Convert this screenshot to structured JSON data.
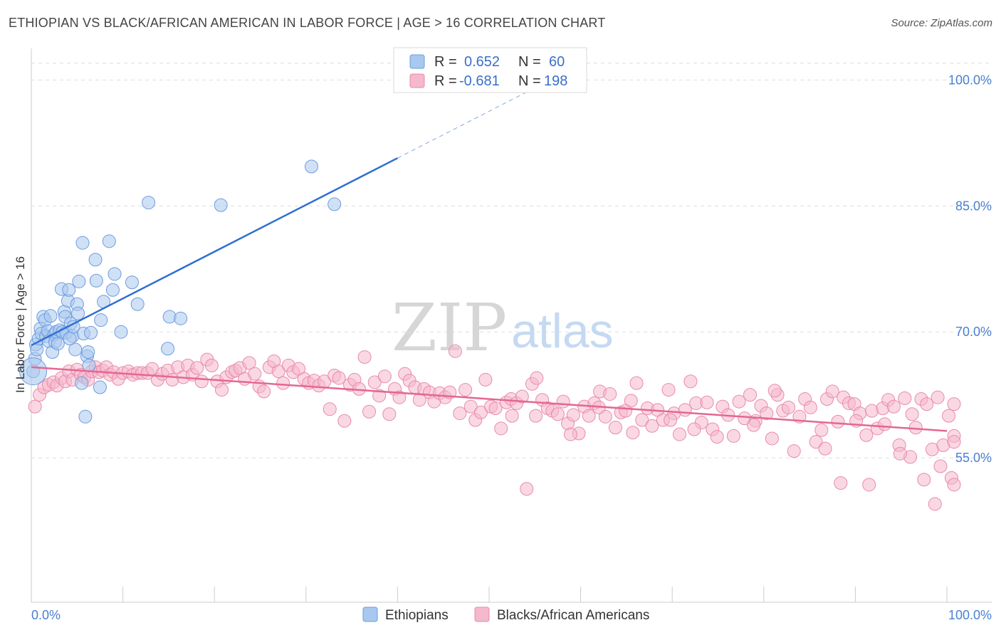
{
  "title": "ETHIOPIAN VS BLACK/AFRICAN AMERICAN IN LABOR FORCE | AGE > 16 CORRELATION CHART",
  "source": "Source: ZipAtlas.com",
  "watermark": {
    "zip": "ZIP",
    "atlas": "atlas"
  },
  "colors": {
    "blue_fill": "#a9c8ef",
    "blue_stroke": "#6d9be0",
    "blue_line": "#2f6fd0",
    "pink_fill": "#f5b8cc",
    "pink_stroke": "#e88aaa",
    "pink_line": "#e5678f"
  },
  "legend": {
    "r_label": "R =",
    "n_label": "N =",
    "series1": {
      "r": "0.652",
      "n": "60"
    },
    "series2": {
      "r": "-0.681",
      "n": "198"
    }
  },
  "chart_data": {
    "type": "scatter",
    "title": "ETHIOPIAN VS BLACK/AFRICAN AMERICAN IN LABOR FORCE | AGE > 16 CORRELATION CHART",
    "xlabel": "",
    "ylabel": "In Labor Force | Age > 16",
    "xlim": [
      0,
      100
    ],
    "ylim": [
      40,
      103
    ],
    "x_tick_labels": [
      "0.0%",
      "100.0%"
    ],
    "y_ticks": [
      55,
      70,
      85,
      100
    ],
    "y_tick_labels": [
      "55.0%",
      "70.0%",
      "85.0%",
      "100.0%"
    ],
    "grid": "horizontal dashed",
    "legend_position": "top-center",
    "series": [
      {
        "name": "Ethiopians",
        "r": 0.652,
        "n": 60,
        "trend": {
          "x": [
            0,
            40
          ],
          "y": [
            68.4,
            90.7
          ],
          "dashed_to": [
            100,
            104
          ]
        },
        "points": [
          [
            0.2,
            65.3
          ],
          [
            0.4,
            66.8
          ],
          [
            0.5,
            68.5
          ],
          [
            0.6,
            67.9
          ],
          [
            0.8,
            69.2
          ],
          [
            1.0,
            70.4
          ],
          [
            1.1,
            69.8
          ],
          [
            1.3,
            71.8
          ],
          [
            1.5,
            71.4
          ],
          [
            1.6,
            69.5
          ],
          [
            1.8,
            70.1
          ],
          [
            1.9,
            68.9
          ],
          [
            2.1,
            71.9
          ],
          [
            2.3,
            67.6
          ],
          [
            2.5,
            69.7
          ],
          [
            2.6,
            68.8
          ],
          [
            2.7,
            70.0
          ],
          [
            2.9,
            68.6
          ],
          [
            3.1,
            70.2
          ],
          [
            3.3,
            75.1
          ],
          [
            3.4,
            70.0
          ],
          [
            3.6,
            72.4
          ],
          [
            3.7,
            71.8
          ],
          [
            3.8,
            69.9
          ],
          [
            4.0,
            73.7
          ],
          [
            4.1,
            75.0
          ],
          [
            4.3,
            71.0
          ],
          [
            4.5,
            69.5
          ],
          [
            4.6,
            70.6
          ],
          [
            4.8,
            67.9
          ],
          [
            5.0,
            73.3
          ],
          [
            5.1,
            72.2
          ],
          [
            5.2,
            76.0
          ],
          [
            5.5,
            63.9
          ],
          [
            5.6,
            80.6
          ],
          [
            5.7,
            69.8
          ],
          [
            6.1,
            67.1
          ],
          [
            6.2,
            67.6
          ],
          [
            6.5,
            69.9
          ],
          [
            7.0,
            78.6
          ],
          [
            7.1,
            76.1
          ],
          [
            7.6,
            71.4
          ],
          [
            7.9,
            73.6
          ],
          [
            8.5,
            80.8
          ],
          [
            8.9,
            75.0
          ],
          [
            9.1,
            76.9
          ],
          [
            9.8,
            70.0
          ],
          [
            11.0,
            75.9
          ],
          [
            11.6,
            73.3
          ],
          [
            12.8,
            85.4
          ],
          [
            14.9,
            68.0
          ],
          [
            15.1,
            71.8
          ],
          [
            16.3,
            71.6
          ],
          [
            20.7,
            85.1
          ],
          [
            30.6,
            89.7
          ],
          [
            33.1,
            85.2
          ],
          [
            5.9,
            59.9
          ],
          [
            7.5,
            63.4
          ],
          [
            6.3,
            66.0
          ],
          [
            4.2,
            69.2
          ]
        ]
      },
      {
        "name": "Blacks/African Americans",
        "r": -0.681,
        "n": 198,
        "trend": {
          "x": [
            0,
            100
          ],
          "y": [
            65.8,
            58.2
          ]
        },
        "points": [
          [
            0.4,
            61.1
          ],
          [
            0.9,
            62.5
          ],
          [
            1.4,
            63.4
          ],
          [
            1.9,
            63.7
          ],
          [
            2.4,
            64.0
          ],
          [
            2.8,
            63.6
          ],
          [
            3.3,
            64.5
          ],
          [
            3.7,
            64.1
          ],
          [
            4.1,
            65.3
          ],
          [
            4.5,
            64.3
          ],
          [
            5.0,
            65.5
          ],
          [
            5.4,
            64.9
          ],
          [
            5.8,
            64.6
          ],
          [
            6.2,
            64.3
          ],
          [
            6.6,
            65.3
          ],
          [
            7.0,
            65.8
          ],
          [
            7.4,
            65.2
          ],
          [
            7.8,
            65.4
          ],
          [
            8.2,
            65.8
          ],
          [
            8.6,
            64.9
          ],
          [
            9.0,
            65.2
          ],
          [
            9.5,
            64.4
          ],
          [
            10.0,
            65.1
          ],
          [
            10.6,
            65.3
          ],
          [
            11.1,
            64.9
          ],
          [
            11.6,
            65.1
          ],
          [
            12.1,
            65.1
          ],
          [
            12.7,
            65.1
          ],
          [
            13.2,
            65.6
          ],
          [
            13.8,
            64.3
          ],
          [
            14.3,
            65.0
          ],
          [
            14.9,
            65.4
          ],
          [
            15.4,
            64.3
          ],
          [
            16.0,
            65.8
          ],
          [
            16.6,
            64.6
          ],
          [
            17.1,
            66.0
          ],
          [
            17.6,
            64.9
          ],
          [
            18.1,
            65.7
          ],
          [
            18.6,
            64.1
          ],
          [
            19.2,
            66.7
          ],
          [
            19.7,
            66.0
          ],
          [
            20.3,
            64.1
          ],
          [
            20.8,
            63.1
          ],
          [
            21.3,
            64.6
          ],
          [
            21.9,
            65.2
          ],
          [
            22.3,
            65.4
          ],
          [
            22.8,
            65.7
          ],
          [
            23.3,
            64.4
          ],
          [
            23.8,
            66.3
          ],
          [
            24.4,
            65.0
          ],
          [
            24.9,
            63.5
          ],
          [
            25.4,
            62.9
          ],
          [
            26.0,
            65.8
          ],
          [
            26.5,
            66.5
          ],
          [
            27.0,
            65.3
          ],
          [
            27.5,
            63.9
          ],
          [
            28.1,
            66.0
          ],
          [
            28.6,
            65.2
          ],
          [
            29.2,
            65.6
          ],
          [
            29.8,
            64.4
          ],
          [
            30.3,
            63.9
          ],
          [
            30.9,
            64.2
          ],
          [
            31.4,
            63.6
          ],
          [
            32.0,
            64.1
          ],
          [
            32.6,
            60.8
          ],
          [
            33.1,
            64.8
          ],
          [
            33.6,
            64.5
          ],
          [
            34.2,
            59.4
          ],
          [
            34.8,
            63.7
          ],
          [
            35.3,
            64.3
          ],
          [
            35.8,
            63.2
          ],
          [
            36.4,
            67.0
          ],
          [
            36.9,
            60.5
          ],
          [
            37.5,
            64.0
          ],
          [
            38.0,
            62.4
          ],
          [
            38.6,
            64.7
          ],
          [
            39.1,
            60.2
          ],
          [
            39.7,
            63.2
          ],
          [
            40.2,
            62.2
          ],
          [
            40.8,
            65.0
          ],
          [
            41.3,
            64.2
          ],
          [
            41.9,
            63.4
          ],
          [
            42.4,
            61.9
          ],
          [
            42.9,
            63.2
          ],
          [
            43.5,
            62.8
          ],
          [
            44.0,
            61.7
          ],
          [
            44.6,
            62.7
          ],
          [
            45.2,
            62.2
          ],
          [
            45.7,
            62.8
          ],
          [
            46.3,
            67.7
          ],
          [
            46.8,
            60.3
          ],
          [
            47.4,
            63.1
          ],
          [
            48.0,
            61.1
          ],
          [
            48.5,
            59.5
          ],
          [
            49.1,
            60.4
          ],
          [
            49.6,
            64.3
          ],
          [
            50.2,
            61.1
          ],
          [
            50.7,
            60.9
          ],
          [
            51.3,
            58.5
          ],
          [
            51.9,
            61.6
          ],
          [
            52.4,
            62.0
          ],
          [
            53.0,
            61.5
          ],
          [
            53.6,
            62.3
          ],
          [
            54.1,
            51.3
          ],
          [
            54.7,
            63.8
          ],
          [
            55.2,
            64.5
          ],
          [
            55.8,
            61.9
          ],
          [
            56.4,
            60.9
          ],
          [
            56.9,
            60.6
          ],
          [
            57.5,
            60.2
          ],
          [
            58.1,
            61.7
          ],
          [
            58.6,
            59.1
          ],
          [
            59.2,
            60.1
          ],
          [
            59.8,
            57.9
          ],
          [
            60.4,
            61.1
          ],
          [
            60.9,
            60.0
          ],
          [
            61.5,
            61.5
          ],
          [
            62.1,
            62.9
          ],
          [
            62.7,
            59.9
          ],
          [
            63.2,
            62.6
          ],
          [
            63.8,
            58.6
          ],
          [
            64.4,
            60.4
          ],
          [
            64.9,
            60.6
          ],
          [
            65.5,
            61.8
          ],
          [
            66.1,
            63.9
          ],
          [
            66.7,
            59.5
          ],
          [
            67.3,
            60.9
          ],
          [
            67.8,
            58.8
          ],
          [
            68.4,
            60.7
          ],
          [
            69.0,
            59.5
          ],
          [
            69.6,
            63.1
          ],
          [
            70.2,
            60.3
          ],
          [
            70.8,
            57.8
          ],
          [
            71.4,
            60.7
          ],
          [
            72.0,
            64.1
          ],
          [
            72.6,
            61.5
          ],
          [
            73.2,
            59.2
          ],
          [
            73.8,
            61.6
          ],
          [
            74.4,
            58.4
          ],
          [
            74.9,
            57.5
          ],
          [
            75.5,
            61.1
          ],
          [
            76.1,
            60.1
          ],
          [
            76.7,
            57.6
          ],
          [
            77.3,
            61.7
          ],
          [
            77.9,
            59.7
          ],
          [
            78.5,
            62.5
          ],
          [
            79.1,
            59.4
          ],
          [
            79.7,
            61.2
          ],
          [
            80.3,
            60.3
          ],
          [
            80.9,
            57.3
          ],
          [
            81.5,
            62.5
          ],
          [
            82.1,
            60.6
          ],
          [
            82.7,
            61.0
          ],
          [
            83.3,
            55.8
          ],
          [
            83.9,
            59.9
          ],
          [
            84.5,
            62.0
          ],
          [
            85.1,
            61.0
          ],
          [
            85.7,
            56.9
          ],
          [
            86.3,
            58.3
          ],
          [
            86.9,
            62.0
          ],
          [
            87.5,
            62.9
          ],
          [
            88.1,
            59.3
          ],
          [
            88.7,
            62.2
          ],
          [
            89.3,
            61.5
          ],
          [
            89.9,
            61.4
          ],
          [
            90.5,
            60.3
          ],
          [
            91.2,
            57.7
          ],
          [
            91.8,
            60.6
          ],
          [
            92.4,
            58.5
          ],
          [
            93.0,
            60.9
          ],
          [
            93.6,
            61.9
          ],
          [
            94.2,
            61.1
          ],
          [
            94.8,
            56.5
          ],
          [
            95.4,
            62.1
          ],
          [
            96.0,
            55.1
          ],
          [
            96.6,
            58.6
          ],
          [
            97.2,
            62.0
          ],
          [
            97.8,
            61.4
          ],
          [
            98.4,
            56.0
          ],
          [
            99.0,
            62.2
          ],
          [
            99.6,
            56.5
          ],
          [
            100.2,
            60.0
          ],
          [
            100.8,
            61.4
          ],
          [
            101.4,
            57.6
          ],
          [
            86.7,
            56.1
          ],
          [
            88.4,
            52.0
          ],
          [
            90.1,
            59.4
          ],
          [
            91.5,
            51.8
          ],
          [
            93.2,
            59.0
          ],
          [
            94.9,
            55.5
          ],
          [
            96.2,
            60.2
          ],
          [
            97.5,
            52.4
          ],
          [
            98.7,
            49.5
          ],
          [
            99.3,
            54.0
          ],
          [
            100.5,
            52.6
          ],
          [
            101.9,
            51.8
          ],
          [
            102.4,
            56.9
          ],
          [
            78.9,
            58.9
          ],
          [
            81.2,
            63.0
          ],
          [
            72.4,
            58.4
          ],
          [
            69.8,
            59.5
          ],
          [
            65.7,
            58.0
          ],
          [
            62.0,
            61.0
          ],
          [
            58.9,
            57.8
          ],
          [
            55.1,
            60.0
          ],
          [
            52.5,
            60.0
          ]
        ]
      }
    ]
  },
  "bottom_legend": [
    "Ethiopians",
    "Blacks/African Americans"
  ]
}
